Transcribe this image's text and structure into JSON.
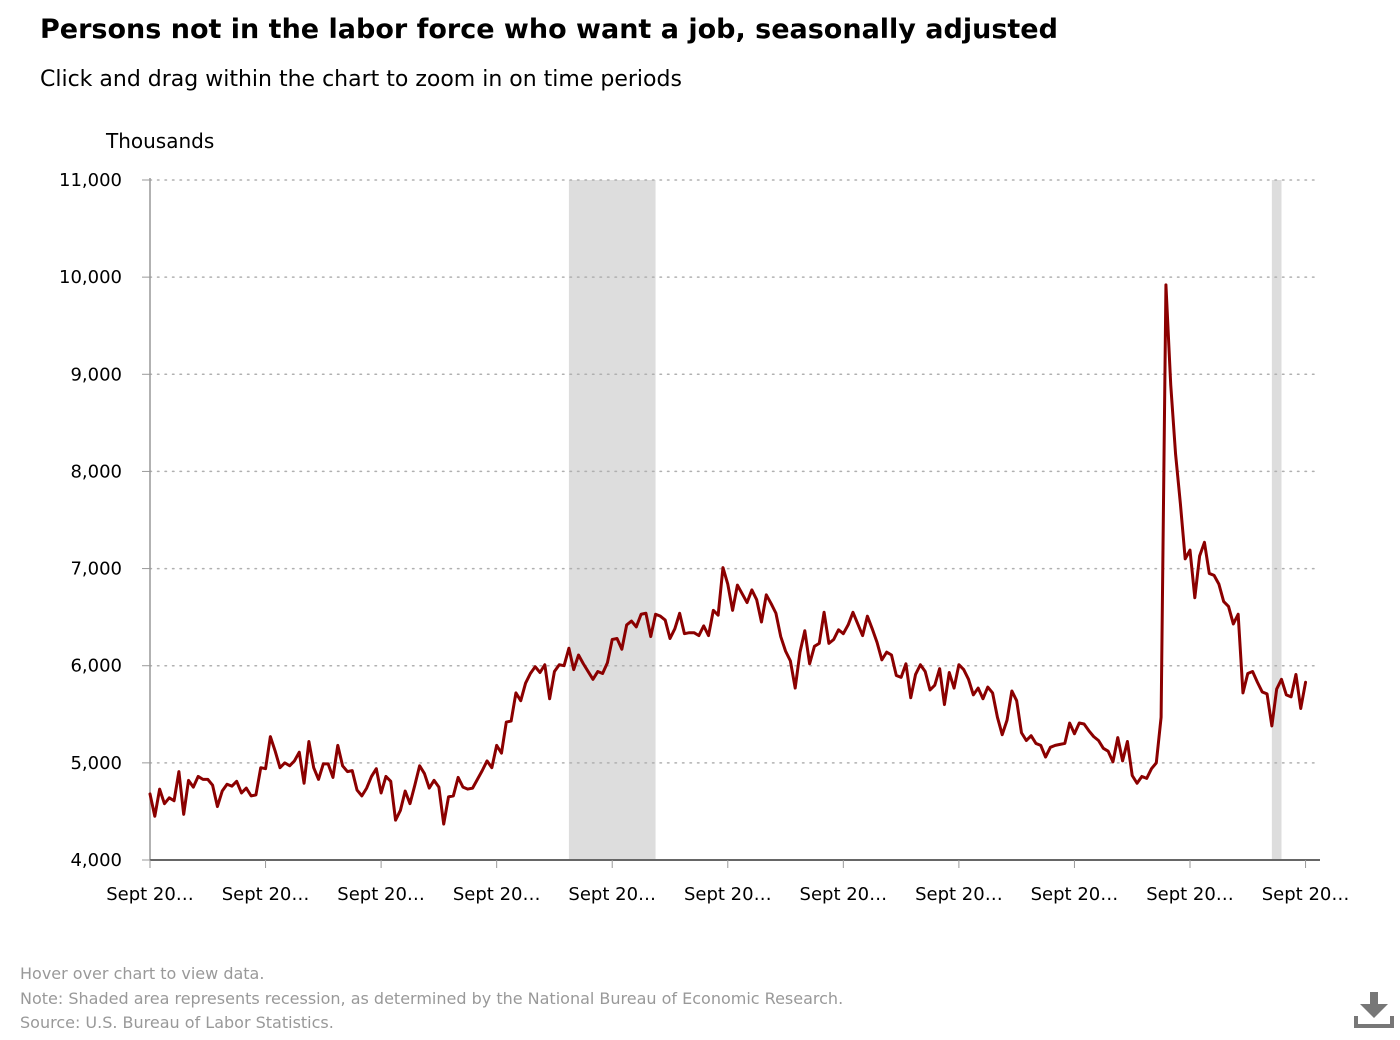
{
  "header": {
    "title": "Persons not in the labor force who want a job, seasonally adjusted",
    "subtitle": "Click and drag within the chart to zoom in on time periods"
  },
  "footer": {
    "hover": "Hover over chart to view data.",
    "note": "Note: Shaded area represents recession, as determined by the National Bureau of Economic Research.",
    "source": "Source: U.S. Bureau of Labor Statistics."
  },
  "download_icon": "download-icon",
  "colors": {
    "line": "#8b0000",
    "recession": "#dddddd",
    "grid": "#b0b0b0",
    "axis": "#999999"
  },
  "chart_data": {
    "type": "line",
    "title": "Persons not in the labor force who want a job, seasonally adjusted",
    "ylabel": "Thousands",
    "xlabel": "",
    "ylim": [
      4000,
      11000
    ],
    "yticks": [
      4000,
      5000,
      6000,
      7000,
      8000,
      9000,
      10000,
      11000
    ],
    "ytick_labels": [
      "4,000",
      "5,000",
      "6,000",
      "7,000",
      "8,000",
      "9,000",
      "10,000",
      "11,000"
    ],
    "xlim": [
      "2000-09",
      "2020-12"
    ],
    "xticks": [
      "2000-09",
      "2002-09",
      "2004-09",
      "2006-09",
      "2008-09",
      "2010-09",
      "2012-09",
      "2014-09",
      "2016-09",
      "2018-09",
      "2020-09"
    ],
    "xtick_labels": [
      "Sept 20…",
      "Sept 20…",
      "Sept 20…",
      "Sept 20…",
      "Sept 20…",
      "Sept 20…",
      "Sept 20…",
      "Sept 20…",
      "Sept 20…",
      "Sept 20…",
      "Sept 20…"
    ],
    "grid": "horizontal dotted",
    "recessions": [
      [
        "2007-12",
        "2009-06"
      ],
      [
        "2020-02",
        "2020-04"
      ]
    ],
    "series": [
      {
        "name": "",
        "x_start": "2000-09",
        "frequency": "monthly",
        "values": [
          4680,
          4450,
          4730,
          4580,
          4640,
          4610,
          4910,
          4470,
          4820,
          4750,
          4860,
          4830,
          4830,
          4770,
          4550,
          4710,
          4780,
          4760,
          4810,
          4690,
          4740,
          4660,
          4670,
          4950,
          4940,
          5270,
          5120,
          4950,
          5000,
          4970,
          5020,
          5110,
          4790,
          5220,
          4950,
          4830,
          4990,
          4990,
          4850,
          5180,
          4970,
          4910,
          4920,
          4720,
          4660,
          4740,
          4860,
          4940,
          4690,
          4860,
          4810,
          4410,
          4510,
          4710,
          4580,
          4770,
          4970,
          4890,
          4740,
          4820,
          4750,
          4370,
          4650,
          4660,
          4850,
          4750,
          4730,
          4740,
          4830,
          4920,
          5020,
          4950,
          5180,
          5100,
          5420,
          5430,
          5720,
          5640,
          5820,
          5920,
          5990,
          5930,
          6010,
          5660,
          5940,
          6010,
          6000,
          6180,
          5960,
          6110,
          6020,
          5940,
          5860,
          5940,
          5920,
          6030,
          6270,
          6280,
          6170,
          6420,
          6460,
          6400,
          6530,
          6540,
          6300,
          6530,
          6510,
          6470,
          6280,
          6380,
          6540,
          6330,
          6340,
          6340,
          6310,
          6410,
          6310,
          6570,
          6520,
          7010,
          6840,
          6570,
          6830,
          6740,
          6650,
          6780,
          6680,
          6450,
          6730,
          6640,
          6540,
          6300,
          6150,
          6050,
          5770,
          6140,
          6360,
          6020,
          6200,
          6230,
          6550,
          6230,
          6270,
          6370,
          6330,
          6420,
          6550,
          6430,
          6310,
          6510,
          6380,
          6240,
          6060,
          6140,
          6110,
          5900,
          5880,
          6020,
          5670,
          5910,
          6010,
          5940,
          5750,
          5800,
          5970,
          5600,
          5930,
          5770,
          6010,
          5960,
          5860,
          5700,
          5770,
          5660,
          5780,
          5720,
          5470,
          5290,
          5440,
          5740,
          5640,
          5310,
          5230,
          5280,
          5200,
          5180,
          5060,
          5160,
          5180,
          5190,
          5200,
          5410,
          5300,
          5410,
          5400,
          5330,
          5270,
          5230,
          5150,
          5120,
          5010,
          5260,
          5020,
          5220,
          4870,
          4790,
          4860,
          4840,
          4940,
          5000,
          5470,
          9920,
          8890,
          8180,
          7670,
          7100,
          7190,
          6700,
          7130,
          7270,
          6950,
          6930,
          6840,
          6660,
          6610,
          6430,
          6530,
          5720,
          5920,
          5940,
          5830,
          5730,
          5710,
          5380,
          5760,
          5860,
          5700,
          5680,
          5910,
          5560,
          5830
        ]
      }
    ]
  }
}
